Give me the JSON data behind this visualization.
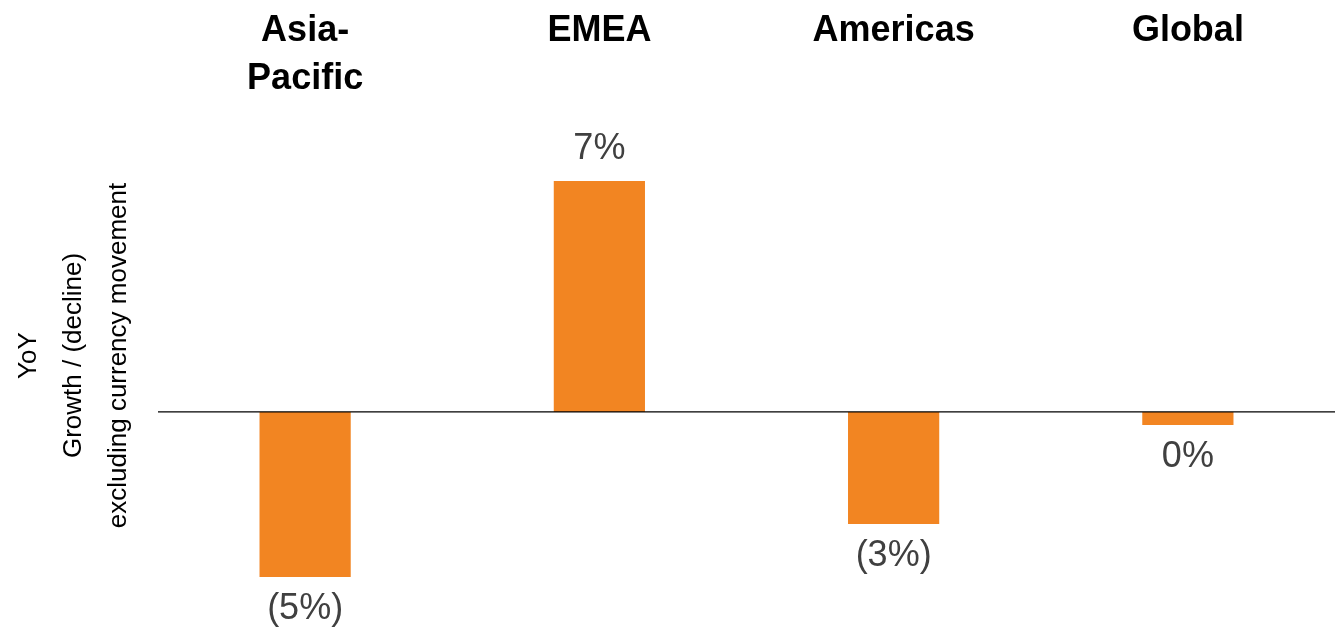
{
  "chart_data": {
    "type": "bar",
    "ylabel": "YoY\nGrowth / (decline)\nexcluding currency movement",
    "categories": [
      "Asia-Pacific",
      "EMEA",
      "Americas",
      "Global"
    ],
    "values": [
      -5,
      7,
      -3.4,
      -0.4
    ],
    "value_labels": [
      "(5%)",
      "7%",
      "(3%)",
      "0%"
    ],
    "color": "#f28522"
  }
}
